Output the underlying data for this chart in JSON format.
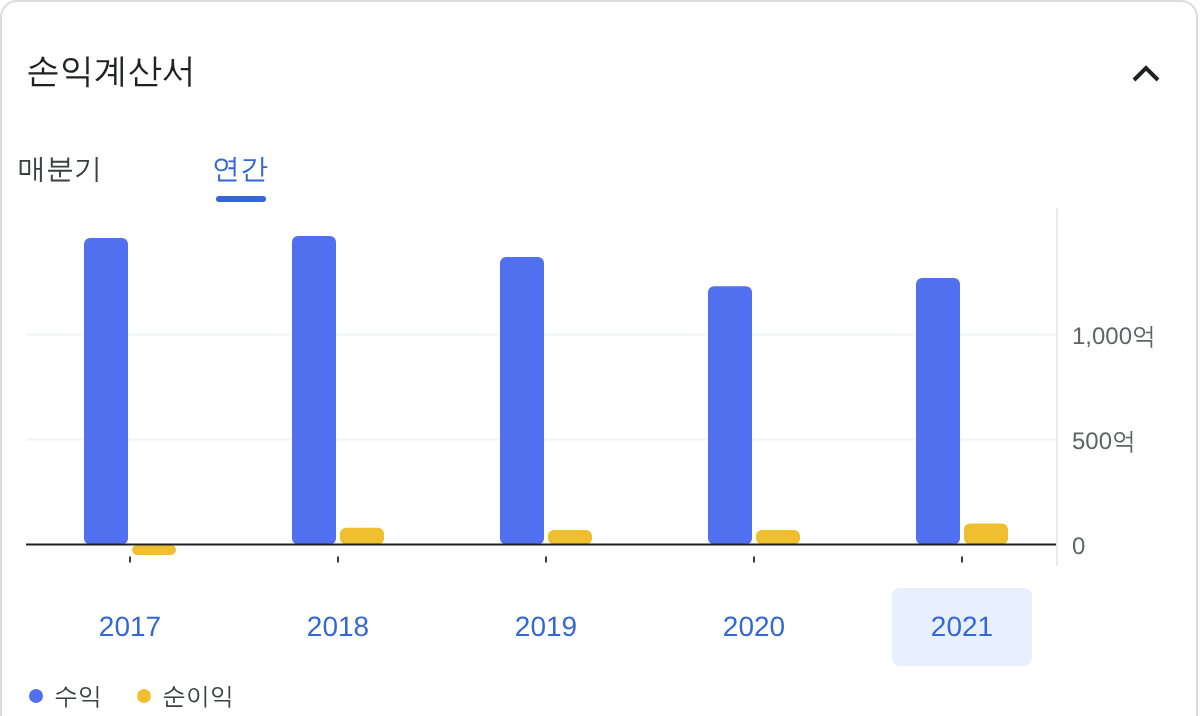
{
  "chart_data": {
    "type": "bar",
    "title": "손익계산서",
    "annotations": [
      "매분기",
      "연간"
    ],
    "categories": [
      "2017",
      "2018",
      "2019",
      "2020",
      "2021"
    ],
    "series": [
      {
        "name": "수익",
        "color": "#5170ef",
        "values": [
          1460,
          1470,
          1370,
          1230,
          1270
        ]
      },
      {
        "name": "순이익",
        "color": "#f0bf2f",
        "values": [
          -50,
          80,
          70,
          70,
          100
        ]
      }
    ],
    "ylim": [
      -100,
      1600
    ],
    "yticks": [
      0,
      {
        "value": 500,
        "label": "500억"
      },
      {
        "value": 1000,
        "label": "1,000억"
      }
    ],
    "grid": "y",
    "legend": "bottom left"
  }
}
